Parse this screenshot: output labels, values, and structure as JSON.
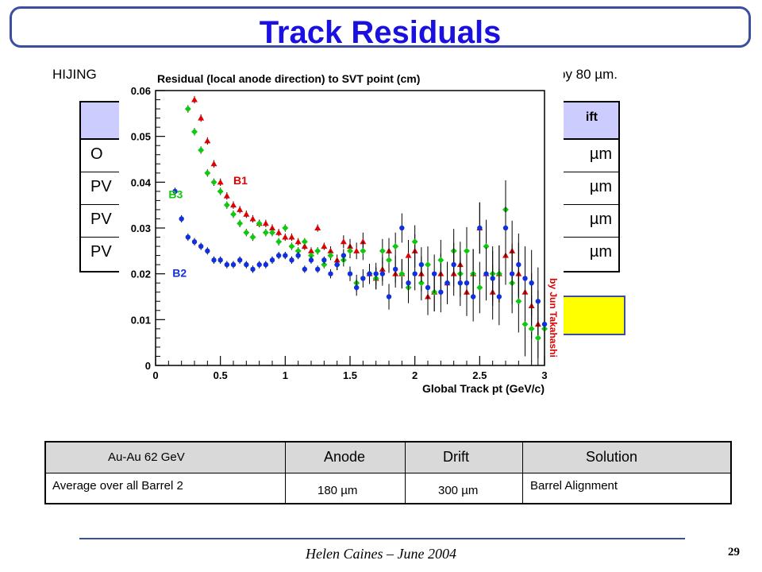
{
  "title": "Track Residuals",
  "subtitle_left": "HIJING",
  "subtitle_right": "by 80 µm.",
  "background_table": {
    "header_right": "ift",
    "rows": [
      {
        "left": "O",
        "right": "µm"
      },
      {
        "left": "PV",
        "right": "µm"
      },
      {
        "left": "PV",
        "right": "µm"
      },
      {
        "left": "PV",
        "right": "µm"
      }
    ]
  },
  "chart_data": {
    "type": "scatter",
    "title": "Residual (local anode direction) to SVT point (cm)",
    "xlabel": "Global Track pt (GeV/c)",
    "ylabel": "",
    "xlim": [
      0,
      3
    ],
    "ylim": [
      0,
      0.06
    ],
    "xticks": [
      "0",
      "0.5",
      "1",
      "1.5",
      "2",
      "2.5",
      "3"
    ],
    "yticks": [
      "0",
      "0.01",
      "0.02",
      "0.03",
      "0.04",
      "0.05",
      "0.06"
    ],
    "credit": "by Jun Takahashi",
    "series": [
      {
        "name": "B1",
        "color": "#e00000",
        "marker": "triangle",
        "x": [
          0.3,
          0.35,
          0.4,
          0.45,
          0.5,
          0.55,
          0.6,
          0.65,
          0.7,
          0.75,
          0.8,
          0.85,
          0.9,
          0.95,
          1.0,
          1.05,
          1.1,
          1.15,
          1.2,
          1.25,
          1.3,
          1.35,
          1.4,
          1.45,
          1.5,
          1.55,
          1.6,
          1.65,
          1.7,
          1.75,
          1.8,
          1.85,
          1.9,
          1.95,
          2.0,
          2.05,
          2.1,
          2.15,
          2.2,
          2.25,
          2.3,
          2.35,
          2.4,
          2.45,
          2.5,
          2.55,
          2.6,
          2.65,
          2.7,
          2.75,
          2.8,
          2.85,
          2.9,
          2.95
        ],
        "y": [
          0.058,
          0.054,
          0.049,
          0.044,
          0.04,
          0.037,
          0.035,
          0.034,
          0.033,
          0.032,
          0.031,
          0.031,
          0.03,
          0.029,
          0.028,
          0.028,
          0.027,
          0.026,
          0.025,
          0.03,
          0.026,
          0.025,
          0.023,
          0.027,
          0.026,
          0.025,
          0.027,
          0.02,
          0.019,
          0.021,
          0.025,
          0.02,
          0.02,
          0.024,
          0.025,
          0.02,
          0.015,
          0.016,
          0.02,
          0.018,
          0.02,
          0.022,
          0.016,
          0.02,
          0.03,
          0.02,
          0.016,
          0.02,
          0.024,
          0.025,
          0.02,
          0.016,
          0.013,
          0.009
        ]
      },
      {
        "name": "B3",
        "color": "#10c810",
        "marker": "diamond",
        "x": [
          0.25,
          0.3,
          0.35,
          0.4,
          0.45,
          0.5,
          0.55,
          0.6,
          0.65,
          0.7,
          0.75,
          0.8,
          0.85,
          0.9,
          0.95,
          1.0,
          1.05,
          1.1,
          1.15,
          1.2,
          1.25,
          1.3,
          1.35,
          1.4,
          1.45,
          1.5,
          1.55,
          1.6,
          1.65,
          1.7,
          1.75,
          1.8,
          1.85,
          1.9,
          1.95,
          2.0,
          2.05,
          2.1,
          2.15,
          2.2,
          2.25,
          2.3,
          2.35,
          2.4,
          2.45,
          2.5,
          2.55,
          2.6,
          2.65,
          2.7,
          2.75,
          2.8,
          2.85,
          2.9,
          2.95,
          3.0
        ],
        "y": [
          0.056,
          0.051,
          0.047,
          0.042,
          0.04,
          0.038,
          0.035,
          0.033,
          0.031,
          0.029,
          0.028,
          0.031,
          0.029,
          0.029,
          0.027,
          0.03,
          0.026,
          0.025,
          0.027,
          0.024,
          0.025,
          0.022,
          0.024,
          0.022,
          0.023,
          0.025,
          0.018,
          0.025,
          0.02,
          0.019,
          0.025,
          0.023,
          0.026,
          0.02,
          0.017,
          0.027,
          0.018,
          0.022,
          0.016,
          0.023,
          0.018,
          0.025,
          0.02,
          0.025,
          0.02,
          0.017,
          0.026,
          0.02,
          0.02,
          0.034,
          0.018,
          0.014,
          0.009,
          0.008,
          0.006,
          0.008
        ]
      },
      {
        "name": "B2",
        "color": "#1030e0",
        "marker": "circle",
        "x": [
          0.15,
          0.2,
          0.25,
          0.3,
          0.35,
          0.4,
          0.45,
          0.5,
          0.55,
          0.6,
          0.65,
          0.7,
          0.75,
          0.8,
          0.85,
          0.9,
          0.95,
          1.0,
          1.05,
          1.1,
          1.15,
          1.2,
          1.25,
          1.3,
          1.35,
          1.4,
          1.45,
          1.5,
          1.55,
          1.6,
          1.65,
          1.7,
          1.75,
          1.8,
          1.85,
          1.9,
          1.95,
          2.0,
          2.05,
          2.1,
          2.15,
          2.2,
          2.25,
          2.3,
          2.35,
          2.4,
          2.45,
          2.5,
          2.55,
          2.6,
          2.65,
          2.7,
          2.75,
          2.8,
          2.85,
          2.9,
          2.95,
          3.0
        ],
        "y": [
          0.038,
          0.032,
          0.028,
          0.027,
          0.026,
          0.025,
          0.023,
          0.023,
          0.022,
          0.022,
          0.023,
          0.022,
          0.021,
          0.022,
          0.022,
          0.023,
          0.024,
          0.024,
          0.023,
          0.024,
          0.021,
          0.023,
          0.021,
          0.023,
          0.02,
          0.022,
          0.024,
          0.02,
          0.017,
          0.019,
          0.02,
          0.02,
          0.02,
          0.015,
          0.021,
          0.03,
          0.018,
          0.02,
          0.022,
          0.017,
          0.02,
          0.016,
          0.018,
          0.022,
          0.018,
          0.018,
          0.015,
          0.03,
          0.02,
          0.019,
          0.015,
          0.03,
          0.02,
          0.022,
          0.019,
          0.018,
          0.014,
          0.009
        ]
      }
    ]
  },
  "results_table": {
    "headers": [
      "Au-Au 62 GeV",
      "Anode",
      "Drift",
      "Solution"
    ],
    "rows": [
      [
        "Average over all Barrel 2",
        "180 µm",
        "300 µm",
        "Barrel Alignment"
      ]
    ]
  },
  "footer": {
    "text": "Helen Caines – June 2004",
    "page": "29"
  }
}
